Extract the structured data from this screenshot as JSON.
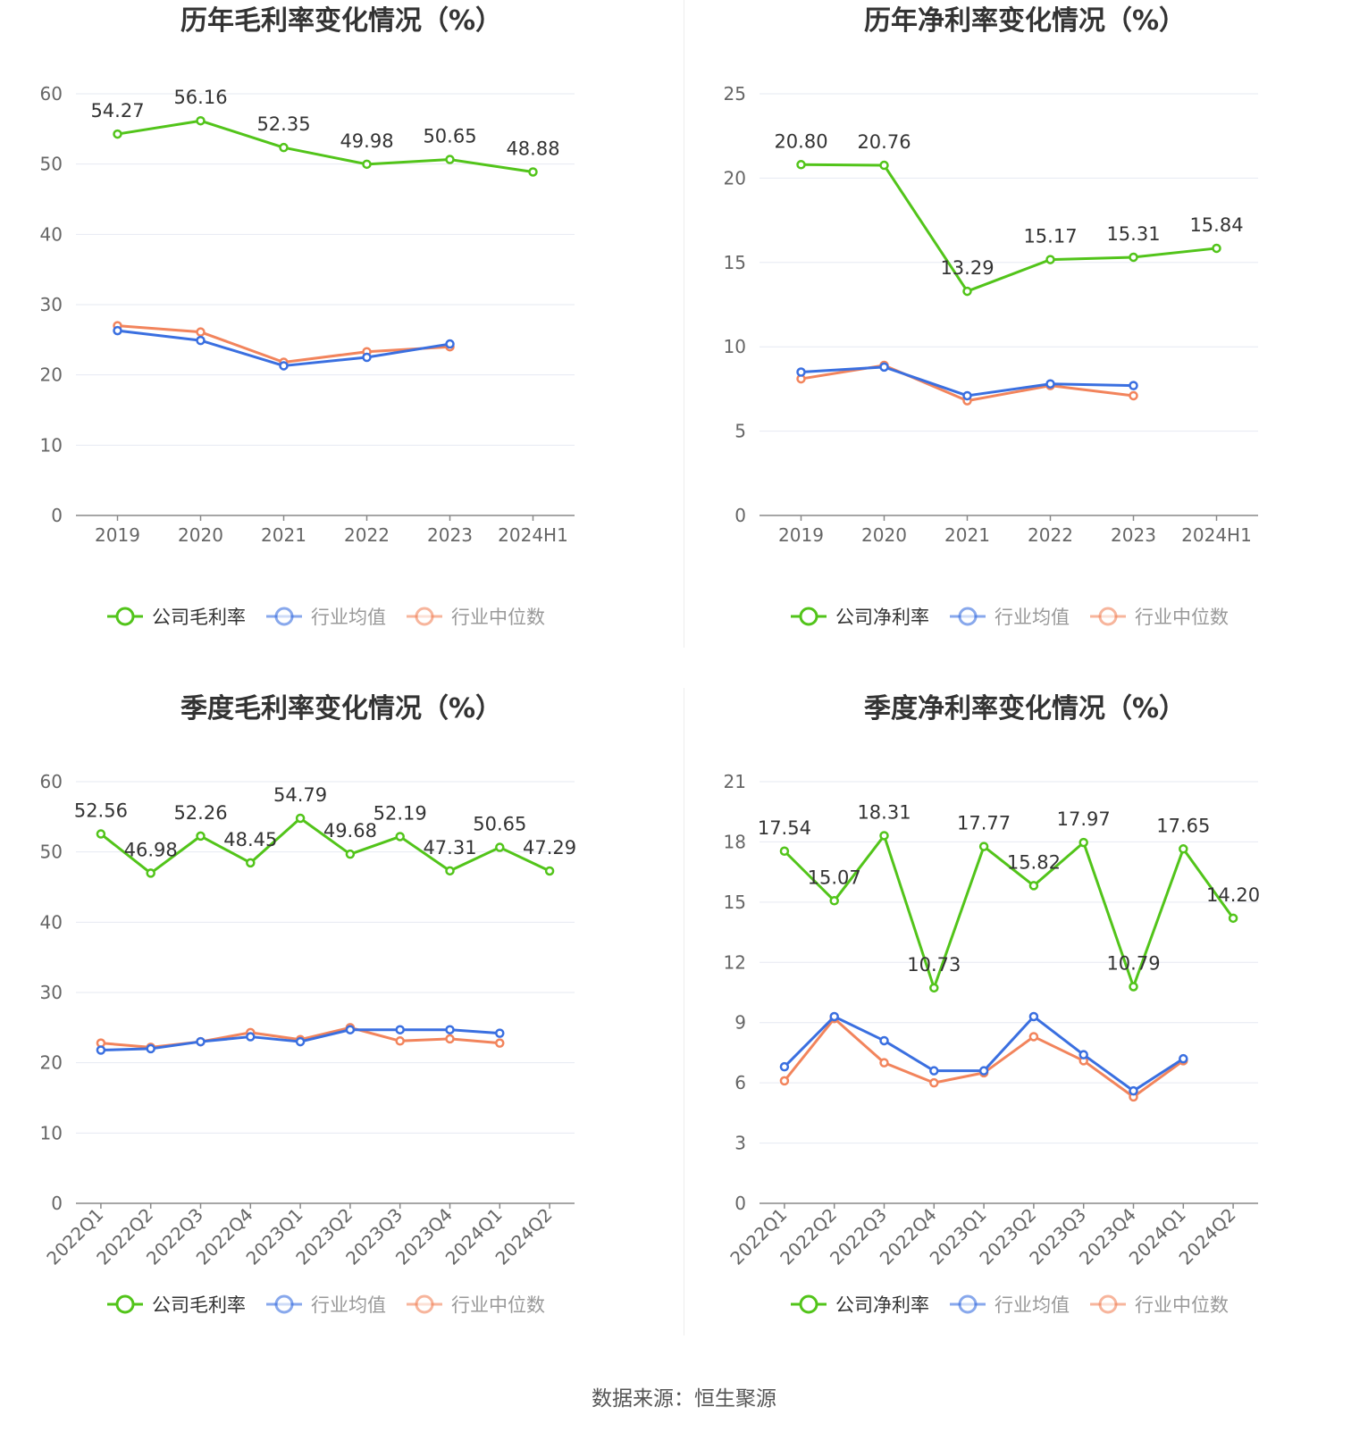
{
  "source_text": "数据来源：恒生聚源",
  "colors": {
    "company": "#52C41A",
    "avg": "#3A6FE0",
    "median": "#F2845C",
    "axis": "#888888",
    "grid": "#E6E9F2",
    "title": "#333333"
  },
  "chart_data": [
    {
      "type": "line",
      "title": "历年毛利率变化情况（%）",
      "categories": [
        "2019",
        "2020",
        "2021",
        "2022",
        "2023",
        "2024H1"
      ],
      "ylim": [
        0,
        60
      ],
      "yticks": [
        0,
        10,
        20,
        30,
        40,
        50,
        60
      ],
      "ytick_labels": [
        "0",
        "10",
        "20",
        "30",
        "40",
        "50",
        "60"
      ],
      "grid": true,
      "legend_position": "bottom",
      "rotate_x_labels": false,
      "series": [
        {
          "name": "公司毛利率",
          "role": "company",
          "values": [
            54.27,
            56.16,
            52.35,
            49.98,
            50.65,
            48.88
          ],
          "labels": [
            "54.27",
            "56.16",
            "52.35",
            "49.98",
            "50.65",
            "48.88"
          ]
        },
        {
          "name": "行业均值",
          "role": "avg",
          "values": [
            26.3,
            24.9,
            21.3,
            22.5,
            24.4,
            null
          ]
        },
        {
          "name": "行业中位数",
          "role": "median",
          "values": [
            27.0,
            26.1,
            21.8,
            23.3,
            24.0,
            null
          ]
        }
      ]
    },
    {
      "type": "line",
      "title": "历年净利率变化情况（%）",
      "categories": [
        "2019",
        "2020",
        "2021",
        "2022",
        "2023",
        "2024H1"
      ],
      "ylim": [
        0,
        25
      ],
      "yticks": [
        0,
        5,
        10,
        15,
        20,
        25
      ],
      "ytick_labels": [
        "0",
        "5",
        "10",
        "15",
        "20",
        "25"
      ],
      "grid": true,
      "legend_position": "bottom",
      "rotate_x_labels": false,
      "series": [
        {
          "name": "公司净利率",
          "role": "company",
          "values": [
            20.8,
            20.76,
            13.29,
            15.17,
            15.31,
            15.84
          ],
          "labels": [
            "20.80",
            "20.76",
            "13.29",
            "15.17",
            "15.31",
            "15.84"
          ]
        },
        {
          "name": "行业均值",
          "role": "avg",
          "values": [
            8.5,
            8.8,
            7.1,
            7.8,
            7.7,
            null
          ]
        },
        {
          "name": "行业中位数",
          "role": "median",
          "values": [
            8.1,
            8.9,
            6.8,
            7.7,
            7.1,
            null
          ]
        }
      ]
    },
    {
      "type": "line",
      "title": "季度毛利率变化情况（%）",
      "categories": [
        "2022Q1",
        "2022Q2",
        "2022Q3",
        "2022Q4",
        "2023Q1",
        "2023Q2",
        "2023Q3",
        "2023Q4",
        "2024Q1",
        "2024Q2"
      ],
      "ylim": [
        0,
        60
      ],
      "yticks": [
        0,
        10,
        20,
        30,
        40,
        50,
        60
      ],
      "ytick_labels": [
        "0",
        "10",
        "20",
        "30",
        "40",
        "50",
        "60"
      ],
      "grid": true,
      "legend_position": "bottom",
      "rotate_x_labels": true,
      "series": [
        {
          "name": "公司毛利率",
          "role": "company",
          "values": [
            52.56,
            46.98,
            52.26,
            48.45,
            54.79,
            49.68,
            52.19,
            47.31,
            50.65,
            47.29
          ],
          "labels": [
            "52.56",
            "46.98",
            "52.26",
            "48.45",
            "54.79",
            "49.68",
            "52.19",
            "47.31",
            "50.65",
            "47.29"
          ]
        },
        {
          "name": "行业均值",
          "role": "avg",
          "values": [
            21.8,
            22.0,
            23.0,
            23.7,
            23.0,
            24.7,
            24.7,
            24.7,
            24.2,
            null
          ]
        },
        {
          "name": "行业中位数",
          "role": "median",
          "values": [
            22.8,
            22.2,
            23.0,
            24.3,
            23.3,
            25.0,
            23.1,
            23.4,
            22.8,
            null
          ]
        }
      ]
    },
    {
      "type": "line",
      "title": "季度净利率变化情况（%）",
      "categories": [
        "2022Q1",
        "2022Q2",
        "2022Q3",
        "2022Q4",
        "2023Q1",
        "2023Q2",
        "2023Q3",
        "2023Q4",
        "2024Q1",
        "2024Q2"
      ],
      "ylim": [
        0,
        21
      ],
      "yticks": [
        0,
        3,
        6,
        9,
        12,
        15,
        18,
        21
      ],
      "ytick_labels": [
        "0",
        "3",
        "6",
        "9",
        "12",
        "15",
        "18",
        "21"
      ],
      "grid": true,
      "legend_position": "bottom",
      "rotate_x_labels": true,
      "series": [
        {
          "name": "公司净利率",
          "role": "company",
          "values": [
            17.54,
            15.07,
            18.31,
            10.73,
            17.77,
            15.82,
            17.97,
            10.79,
            17.65,
            14.2
          ],
          "labels": [
            "17.54",
            "15.07",
            "18.31",
            "10.73",
            "17.77",
            "15.82",
            "17.97",
            "10.79",
            "17.65",
            "14.20"
          ]
        },
        {
          "name": "行业均值",
          "role": "avg",
          "values": [
            6.8,
            9.3,
            8.1,
            6.6,
            6.6,
            9.3,
            7.4,
            5.6,
            7.2,
            null
          ]
        },
        {
          "name": "行业中位数",
          "role": "median",
          "values": [
            6.1,
            9.2,
            7.0,
            6.0,
            6.5,
            8.3,
            7.1,
            5.3,
            7.1,
            null
          ]
        }
      ]
    }
  ]
}
